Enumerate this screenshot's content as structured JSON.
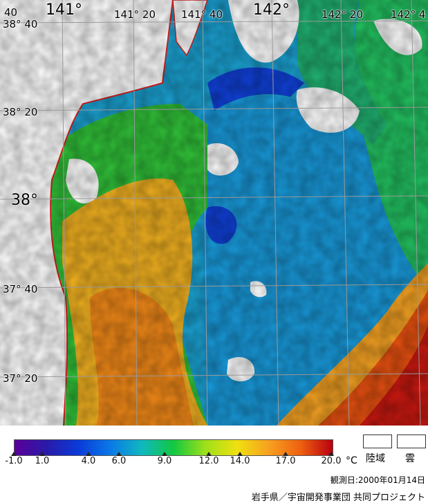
{
  "map": {
    "lon_labels": [
      "141°",
      "141° 20",
      "141° 40",
      "142°",
      "142° 20",
      "142° 4"
    ],
    "lat_labels": [
      "38° 40",
      "38° 20",
      "38°",
      "37° 40",
      "37° 20"
    ],
    "corner_label": "40"
  },
  "colorbar": {
    "ticks": [
      "-1.0",
      "1.0",
      "4.0",
      "6.0",
      "9.0",
      "12.0",
      "14.0",
      "17.0",
      "20.0"
    ],
    "unit": "°C",
    "colors": [
      "#5a0098",
      "#2a1aa8",
      "#0a3ad8",
      "#0a78e8",
      "#10b8c0",
      "#12c840",
      "#9ee01a",
      "#f0e010",
      "#f7a020",
      "#ee6010",
      "#b80010"
    ]
  },
  "key": {
    "land": "陸域",
    "cloud": "雲"
  },
  "obs_date": "観測日:2000年01月14日",
  "credit": "岩手県／宇宙開発事業団 共同プロジェクト"
}
